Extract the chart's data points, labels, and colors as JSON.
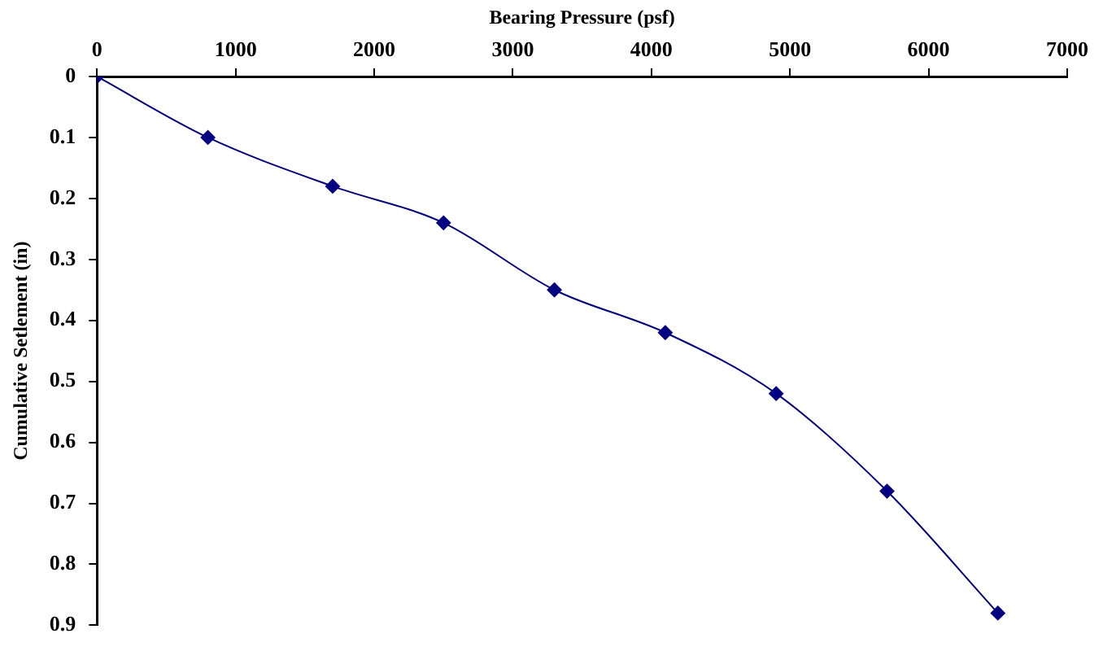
{
  "chart_data": {
    "type": "line",
    "xlabel": "Bearing Pressure (psf)",
    "ylabel": "Cumulative Setlement (in)",
    "x": [
      0,
      800,
      1700,
      2500,
      3300,
      4100,
      4900,
      5700,
      6500
    ],
    "series": [
      {
        "color": "#000080",
        "values": [
          0,
          0.1,
          0.18,
          0.24,
          0.35,
          0.42,
          0.52,
          0.68,
          0.88
        ]
      }
    ],
    "xlim": [
      0,
      7000
    ],
    "xticks": [
      0,
      1000,
      2000,
      3000,
      4000,
      5000,
      6000,
      7000
    ],
    "ylim": [
      0.9,
      0
    ],
    "yticks": [
      0,
      0.1,
      0.2,
      0.3,
      0.4,
      0.5,
      0.6,
      0.7,
      0.8,
      0.9
    ],
    "grid": false,
    "legend": false,
    "marker": "diamond",
    "line_style": "solid"
  }
}
